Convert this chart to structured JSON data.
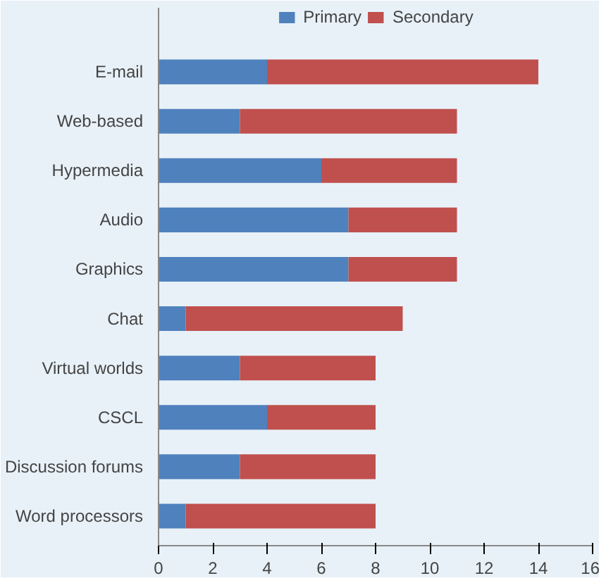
{
  "chart_data": {
    "type": "bar",
    "orientation": "horizontal",
    "stacked": true,
    "categories": [
      "E-mail",
      "Web-based",
      "Hypermedia",
      "Audio",
      "Graphics",
      "Chat",
      "Virtual worlds",
      "CSCL",
      "Discussion forums",
      "Word processors"
    ],
    "series": [
      {
        "name": "Primary",
        "color": "#4f81bd",
        "values": [
          4,
          3,
          6,
          7,
          7,
          1,
          3,
          4,
          3,
          1
        ]
      },
      {
        "name": "Secondary",
        "color": "#c0504d",
        "values": [
          10,
          8,
          5,
          4,
          4,
          8,
          5,
          4,
          5,
          7
        ]
      }
    ],
    "xlim": [
      0,
      16
    ],
    "xticks": [
      0,
      2,
      4,
      6,
      8,
      10,
      12,
      14,
      16
    ],
    "legend": "top"
  }
}
